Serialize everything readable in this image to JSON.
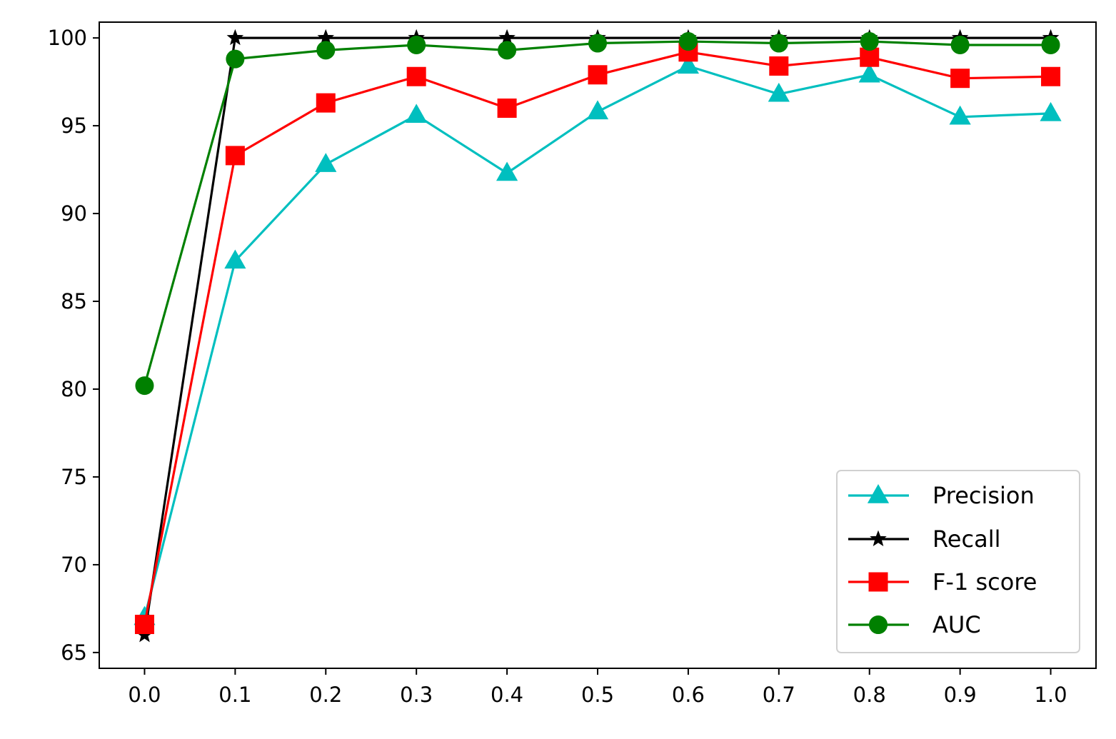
{
  "chart_data": {
    "type": "line",
    "title": "",
    "xlabel": "",
    "ylabel": "",
    "x": [
      0.0,
      0.1,
      0.2,
      0.3,
      0.4,
      0.5,
      0.6,
      0.7,
      0.8,
      0.9,
      1.0
    ],
    "x_tick_labels": [
      "0.0",
      "0.1",
      "0.2",
      "0.3",
      "0.4",
      "0.5",
      "0.6",
      "0.7",
      "0.8",
      "0.9",
      "1.0"
    ],
    "y_ticks": [
      65,
      70,
      75,
      80,
      85,
      90,
      95,
      100
    ],
    "y_tick_labels": [
      "65",
      "70",
      "75",
      "80",
      "85",
      "90",
      "95",
      "100"
    ],
    "xlim": [
      -0.05,
      1.05
    ],
    "ylim": [
      64.1,
      100.9
    ],
    "grid": false,
    "legend_position": "lower-right",
    "series": [
      {
        "name": "Precision",
        "color": "#00bfbf",
        "marker": "triangle",
        "values": [
          67.0,
          87.3,
          92.8,
          95.6,
          92.3,
          95.8,
          98.4,
          96.8,
          97.9,
          95.5,
          95.7
        ]
      },
      {
        "name": "Recall",
        "color": "#000000",
        "marker": "star",
        "values": [
          66.0,
          100.0,
          100.0,
          100.0,
          100.0,
          100.0,
          100.0,
          100.0,
          100.0,
          100.0,
          100.0
        ]
      },
      {
        "name": "F-1 score",
        "color": "#ff0000",
        "marker": "square",
        "values": [
          66.6,
          93.3,
          96.3,
          97.8,
          96.0,
          97.9,
          99.2,
          98.4,
          98.9,
          97.7,
          97.8
        ]
      },
      {
        "name": "AUC",
        "color": "#008000",
        "marker": "circle",
        "values": [
          80.2,
          98.8,
          99.3,
          99.6,
          99.3,
          99.7,
          99.8,
          99.7,
          99.8,
          99.6,
          99.6
        ]
      }
    ]
  }
}
